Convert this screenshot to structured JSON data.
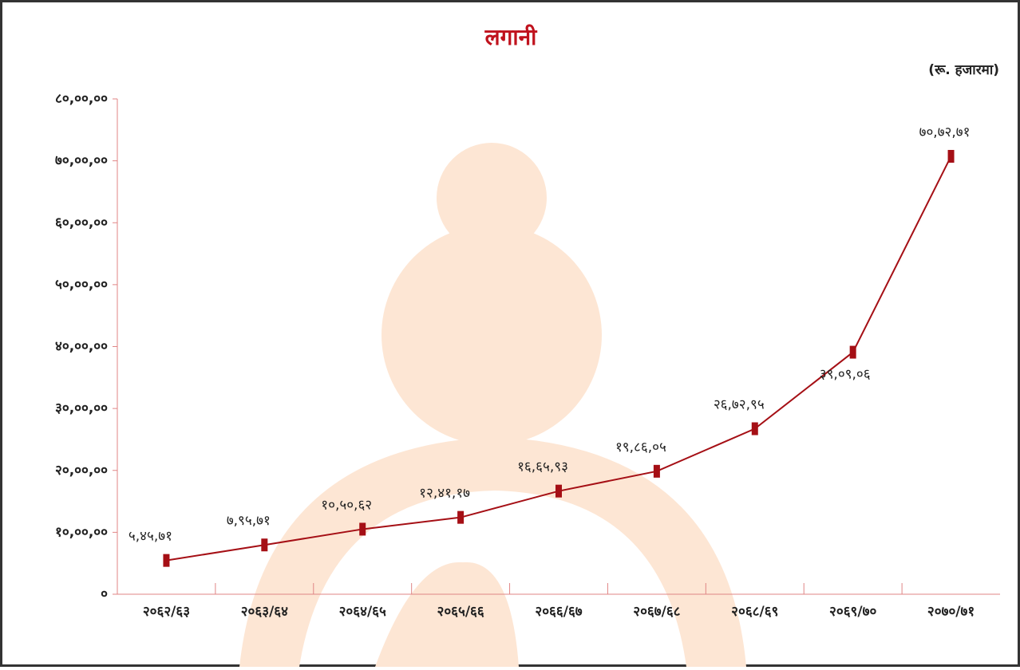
{
  "chart_data": {
    "type": "line",
    "title": "लगानी",
    "unit_label": "(रू. हजारमा)",
    "categories": [
      "२०६२/६३",
      "२०६३/६४",
      "२०६४/६५",
      "२०६५/६६",
      "२०६६/६७",
      "२०६७/६८",
      "२०६८/६९",
      "२०६९/७०",
      "२०७०/७१"
    ],
    "values": [
      54571,
      79571,
      105062,
      124117,
      166593,
      198605,
      267295,
      390906,
      707271
    ],
    "value_labels": [
      "५,४५,७१",
      "७,९५,७१",
      "१०,५०,६२",
      "१२,४१,१७",
      "१६,६५,९३",
      "१९,८६,०५",
      "२६,७२,९५",
      "३९,०९,०६",
      "७०,७२,७१"
    ],
    "color": "#a50f15",
    "ylim": [
      0,
      800000
    ],
    "yticks": [
      {
        "value": 0,
        "label": "०"
      },
      {
        "value": 100000,
        "label": "१०,००,००"
      },
      {
        "value": 200000,
        "label": "२०,००,००"
      },
      {
        "value": 300000,
        "label": "३०,००,००"
      },
      {
        "value": 400000,
        "label": "४०,००,००"
      },
      {
        "value": 500000,
        "label": "५०,००,००"
      },
      {
        "value": 600000,
        "label": "६०,००,००"
      },
      {
        "value": 700000,
        "label": "७०,००,००"
      },
      {
        "value": 800000,
        "label": "८०,००,००"
      }
    ]
  }
}
